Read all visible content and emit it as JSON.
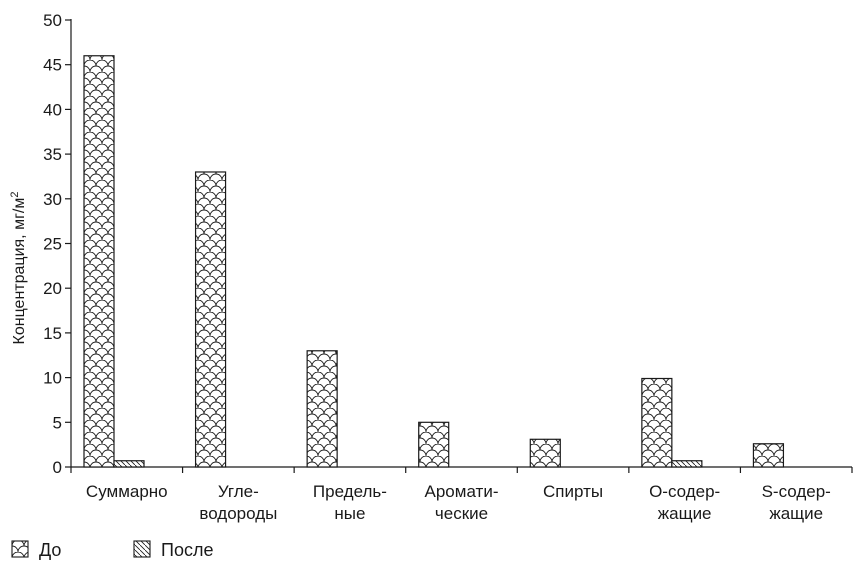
{
  "chart_data": {
    "type": "bar",
    "ylabel": "Концентрация, мг/м",
    "ylabel_sup": "2",
    "ylim": [
      0,
      50
    ],
    "yticks": [
      0,
      5,
      10,
      15,
      20,
      25,
      30,
      35,
      40,
      45,
      50
    ],
    "grid": false,
    "legend_position": "bottom-left",
    "categories": [
      [
        "Суммарно"
      ],
      [
        "Угле-",
        "водороды"
      ],
      [
        "Предель-",
        "ные"
      ],
      [
        "Аромати-",
        "ческие"
      ],
      [
        "Спирты"
      ],
      [
        "О-содер-",
        "жащие"
      ],
      [
        "S-содер-",
        "жащие"
      ]
    ],
    "series": [
      {
        "name": "До",
        "pattern": "scales",
        "values": [
          46,
          33,
          13,
          5,
          3.1,
          9.9,
          2.6
        ]
      },
      {
        "name": "После",
        "pattern": "hatch",
        "values": [
          0.7,
          0,
          0,
          0,
          0,
          0.7,
          0
        ]
      }
    ],
    "colors": {
      "ink": "#1a1a1a",
      "background": "#ffffff"
    }
  }
}
